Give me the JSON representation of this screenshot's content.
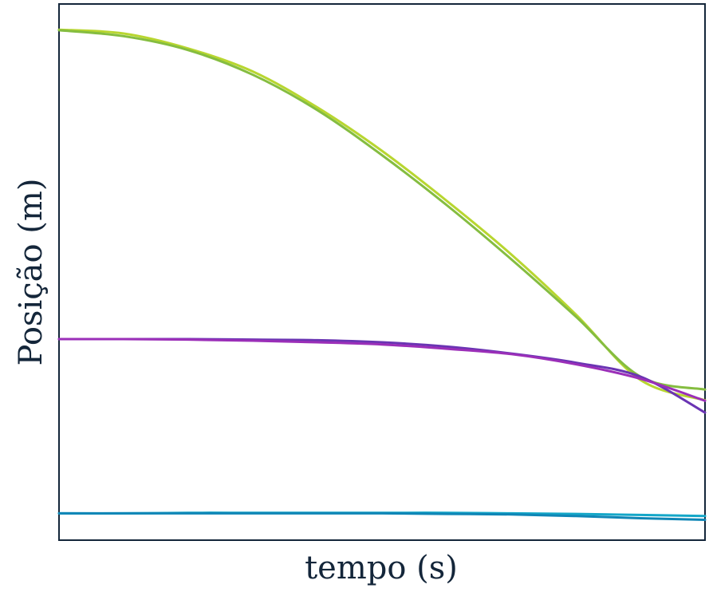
{
  "chart_data": {
    "type": "line",
    "title": "",
    "xlabel": "tempo (s)",
    "ylabel": "Posição (m)",
    "xlim": [
      0,
      1
    ],
    "ylim": [
      0,
      1
    ],
    "grid": false,
    "legend": "none",
    "ticks_visible": false,
    "frame_color": "#14263a",
    "text_color": "#14263a",
    "series": [
      {
        "color": "#b8d630",
        "x": [
          0.0,
          0.1,
          0.2,
          0.3,
          0.4,
          0.5,
          0.6,
          0.7,
          0.8,
          0.9,
          1.0
        ],
        "values": [
          0.952,
          0.945,
          0.917,
          0.874,
          0.807,
          0.726,
          0.633,
          0.533,
          0.421,
          0.299,
          0.261
        ]
      },
      {
        "color": "#85bd40",
        "x": [
          0.0,
          0.1,
          0.2,
          0.3,
          0.4,
          0.5,
          0.6,
          0.7,
          0.8,
          0.9,
          1.0
        ],
        "values": [
          0.951,
          0.94,
          0.914,
          0.868,
          0.802,
          0.718,
          0.625,
          0.524,
          0.417,
          0.305,
          0.281
        ]
      },
      {
        "color": "#6a34b3",
        "x": [
          0.0,
          0.1,
          0.2,
          0.3,
          0.4,
          0.5,
          0.6,
          0.7,
          0.8,
          0.9,
          1.0
        ],
        "values": [
          0.375,
          0.375,
          0.375,
          0.374,
          0.373,
          0.369,
          0.361,
          0.348,
          0.331,
          0.305,
          0.238
        ]
      },
      {
        "color": "#9b2fb8",
        "x": [
          0.0,
          0.1,
          0.2,
          0.3,
          0.4,
          0.5,
          0.6,
          0.7,
          0.8,
          0.9,
          1.0
        ],
        "values": [
          0.375,
          0.375,
          0.374,
          0.372,
          0.369,
          0.365,
          0.357,
          0.347,
          0.328,
          0.301,
          0.26
        ]
      },
      {
        "color": "#14a7c8",
        "x": [
          0.0,
          0.1,
          0.2,
          0.3,
          0.4,
          0.5,
          0.6,
          0.7,
          0.8,
          0.9,
          1.0
        ],
        "values": [
          0.05,
          0.05,
          0.051,
          0.051,
          0.051,
          0.051,
          0.051,
          0.05,
          0.049,
          0.047,
          0.045
        ]
      },
      {
        "color": "#0f86b6",
        "x": [
          0.0,
          0.1,
          0.2,
          0.3,
          0.4,
          0.5,
          0.6,
          0.7,
          0.8,
          0.9,
          1.0
        ],
        "values": [
          0.05,
          0.05,
          0.05,
          0.05,
          0.05,
          0.05,
          0.049,
          0.048,
          0.045,
          0.041,
          0.038
        ]
      }
    ]
  }
}
